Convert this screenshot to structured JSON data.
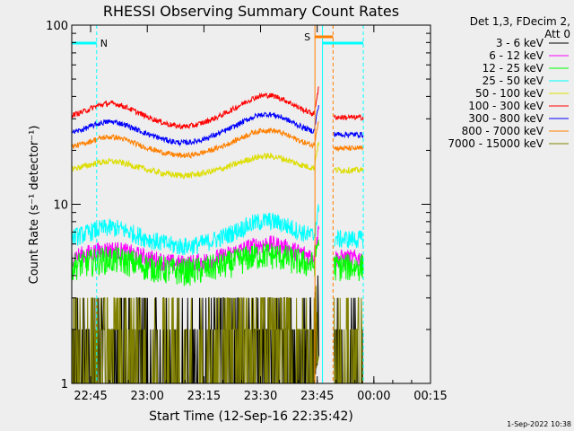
{
  "chart_data": {
    "type": "line",
    "title": "RHESSI Observing Summary Count Rates",
    "xlabel": "Start Time (12-Sep-16 22:35:42)",
    "ylabel": "Count Rate (s⁻¹ detector⁻¹)",
    "yscale": "log",
    "ylim": [
      1,
      100
    ],
    "xlim_minutes": [
      4.3,
      99.3
    ],
    "x_ticks": [
      {
        "label": "22:45",
        "t": 9.3
      },
      {
        "label": "23:00",
        "t": 24.3
      },
      {
        "label": "23:15",
        "t": 39.3
      },
      {
        "label": "23:30",
        "t": 54.3
      },
      {
        "label": "23:45",
        "t": 69.3
      },
      {
        "label": "00:00",
        "t": 84.3
      },
      {
        "label": "00:15",
        "t": 99.3
      }
    ],
    "y_ticks": [
      {
        "label": "1",
        "v": 1
      },
      {
        "label": "10",
        "v": 10
      },
      {
        "label": "100",
        "v": 100
      }
    ],
    "legend_header": [
      "Det 1,3, FDecim 2,",
      "Att 0"
    ],
    "legend_position": "top-right",
    "series": [
      {
        "name": "3 - 6 keV",
        "color": "#000000",
        "base": 2.0,
        "amp": 0.05,
        "noise": 0.02
      },
      {
        "name": "6 - 12 keV",
        "color": "#ff00ff",
        "base": 5.0,
        "amp": 0.12,
        "noise": 0.12
      },
      {
        "name": "12 - 25 keV",
        "color": "#00ff00",
        "base": 4.5,
        "amp": 0.1,
        "noise": 0.18
      },
      {
        "name": "25 - 50 keV",
        "color": "#00ffff",
        "base": 6.4,
        "amp": 0.16,
        "noise": 0.12
      },
      {
        "name": "50 - 100 keV",
        "color": "#dddd00",
        "base": 15.5,
        "amp": 0.12,
        "noise": 0.04
      },
      {
        "name": "100 - 300 keV",
        "color": "#ff0000",
        "base": 30.5,
        "amp": 0.2,
        "noise": 0.035
      },
      {
        "name": "300 - 800 keV",
        "color": "#0000ff",
        "base": 24.5,
        "amp": 0.18,
        "noise": 0.035
      },
      {
        "name": "800 - 7000 keV",
        "color": "#ff8000",
        "base": 20.5,
        "amp": 0.16,
        "noise": 0.035
      },
      {
        "name": "7000 - 15000 keV",
        "color": "#808000",
        "base": 1.5,
        "amp": 0.05,
        "noise": 0.15
      }
    ],
    "data_gap_minutes": [
      69.8,
      73.8
    ],
    "resume_minutes": 73.8,
    "end_minutes": 81.5,
    "annotations": [
      {
        "text": "N",
        "color": "#00ffff",
        "kind": "night",
        "t_start": 4.3,
        "t_end": 10.9,
        "row": "upper"
      },
      {
        "text": "",
        "color": "#00ffff",
        "kind": "night",
        "t_start": 70.7,
        "t_end": 81.5,
        "row": "upper"
      },
      {
        "text": "S",
        "color": "#ff8000",
        "kind": "saa",
        "t_start": 68.7,
        "t_end": 73.5,
        "row": "lower"
      }
    ],
    "dashed_markers": [
      {
        "t": 10.9,
        "color": "#00ffff"
      },
      {
        "t": 73.5,
        "color": "#ff8000"
      },
      {
        "t": 81.5,
        "color": "#00ffff"
      }
    ],
    "solid_markers": [
      {
        "t": 68.7,
        "color": "#ff8000"
      },
      {
        "t": 70.7,
        "color": "#00ffff"
      }
    ],
    "footer_date": "1-Sep-2022 10:38"
  }
}
